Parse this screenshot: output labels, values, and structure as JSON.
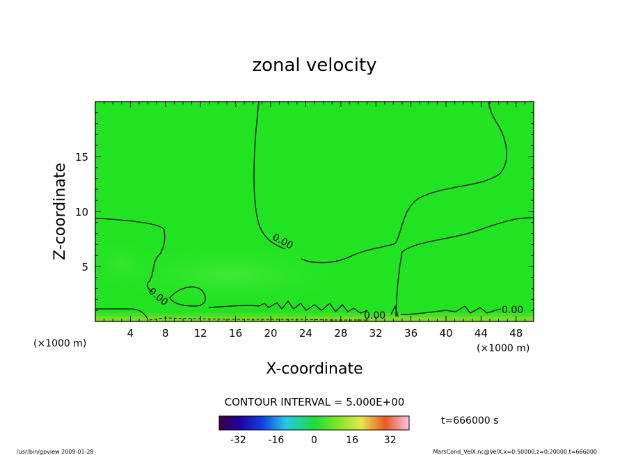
{
  "chart_data": {
    "type": "contour",
    "title": "zonal velocity",
    "xlabel": "X-coordinate",
    "ylabel": "Z-coordinate",
    "x_unit_label": "(×1000 m)",
    "y_unit_label": "(×1000 m)",
    "xlim": [
      0,
      50
    ],
    "ylim": [
      0,
      20
    ],
    "x_ticks": [
      4,
      8,
      12,
      16,
      20,
      24,
      28,
      32,
      36,
      40,
      44,
      48
    ],
    "y_ticks": [
      5,
      10,
      15
    ],
    "contour_labels": [
      "0.00",
      "0.00",
      "0.00",
      "0.00"
    ],
    "contour_interval_text": "CONTOUR INTERVAL = 5.000E+00",
    "time_text": "t=666000 s",
    "colorbar": {
      "range": [
        -40,
        40
      ],
      "ticks": [
        -32,
        -16,
        0,
        16,
        32
      ]
    },
    "footer_left": "/usr/bin/gpview  2009-01-28",
    "footer_right": "MarsCond_VelX.nc@VelX,x=0:50000,z=0:20000,t=666000",
    "colors": {
      "field_main": "#22e322",
      "field_light": "#3ee83e",
      "field_bottom": "#9ada2a",
      "contour": "#000000"
    }
  }
}
